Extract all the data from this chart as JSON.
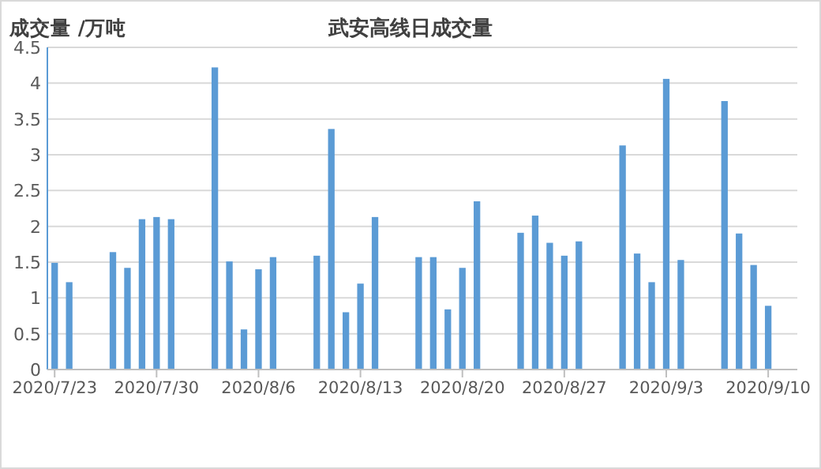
{
  "chart_data": {
    "type": "bar",
    "title": "武安高线日成交量",
    "ylabel": "成交量 /万吨",
    "color": "#5b9bd5",
    "x": [
      "2020-07-23",
      "2020-07-24",
      "2020-07-27",
      "2020-07-28",
      "2020-07-29",
      "2020-07-30",
      "2020-07-31",
      "2020-08-03",
      "2020-08-04",
      "2020-08-05",
      "2020-08-06",
      "2020-08-07",
      "2020-08-10",
      "2020-08-11",
      "2020-08-12",
      "2020-08-13",
      "2020-08-14",
      "2020-08-17",
      "2020-08-18",
      "2020-08-19",
      "2020-08-20",
      "2020-08-21",
      "2020-08-24",
      "2020-08-25",
      "2020-08-26",
      "2020-08-27",
      "2020-08-28",
      "2020-08-31",
      "2020-09-01",
      "2020-09-02",
      "2020-09-03",
      "2020-09-04",
      "2020-09-07",
      "2020-09-08",
      "2020-09-09",
      "2020-09-10"
    ],
    "values": [
      1.49,
      1.22,
      1.64,
      1.42,
      2.1,
      2.13,
      2.1,
      4.22,
      1.51,
      0.56,
      1.4,
      1.57,
      1.59,
      3.36,
      0.8,
      1.2,
      2.13,
      1.57,
      1.57,
      0.84,
      1.42,
      2.35,
      1.91,
      2.15,
      1.77,
      1.59,
      1.79,
      3.13,
      1.62,
      1.22,
      4.06,
      1.53,
      3.75,
      1.9,
      1.46,
      0.89
    ],
    "xlim": [
      "2020-07-22T12:00",
      "2020-09-12"
    ],
    "xticks": [
      {
        "value": "2020-07-23",
        "label": "2020/7/23"
      },
      {
        "value": "2020-07-30",
        "label": "2020/7/30"
      },
      {
        "value": "2020-08-06",
        "label": "2020/8/6"
      },
      {
        "value": "2020-08-13",
        "label": "2020/8/13"
      },
      {
        "value": "2020-08-20",
        "label": "2020/8/20"
      },
      {
        "value": "2020-08-27",
        "label": "2020/8/27"
      },
      {
        "value": "2020-09-03",
        "label": "2020/9/3"
      },
      {
        "value": "2020-09-10",
        "label": "2020/9/10"
      }
    ],
    "ylim": [
      0,
      4.5
    ],
    "yticks": [
      0,
      0.5,
      1,
      1.5,
      2,
      2.5,
      3,
      3.5,
      4,
      4.5
    ],
    "grid": "y"
  }
}
